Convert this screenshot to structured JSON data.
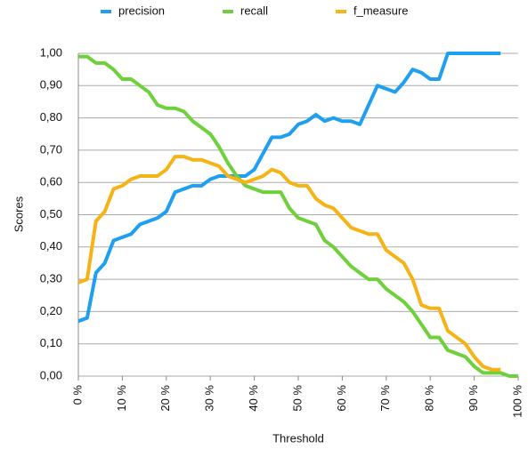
{
  "chart_data": {
    "type": "line",
    "x_label": "Threshold",
    "y_label": "Scores",
    "x": [
      0,
      2,
      4,
      6,
      8,
      10,
      12,
      14,
      16,
      18,
      20,
      22,
      24,
      26,
      28,
      30,
      32,
      34,
      36,
      38,
      40,
      42,
      44,
      46,
      48,
      50,
      52,
      54,
      56,
      58,
      60,
      62,
      64,
      66,
      68,
      70,
      72,
      74,
      76,
      78,
      80,
      82,
      84,
      86,
      88,
      90,
      92,
      94,
      96,
      98,
      100
    ],
    "series": [
      {
        "name": "precision",
        "color": "#1e9ff0",
        "values": [
          0.17,
          0.18,
          0.32,
          0.35,
          0.42,
          0.43,
          0.44,
          0.47,
          0.48,
          0.49,
          0.51,
          0.57,
          0.58,
          0.59,
          0.59,
          0.61,
          0.62,
          0.62,
          0.62,
          0.62,
          0.64,
          0.69,
          0.74,
          0.74,
          0.75,
          0.78,
          0.79,
          0.81,
          0.79,
          0.8,
          0.79,
          0.79,
          0.78,
          0.84,
          0.9,
          0.89,
          0.88,
          0.91,
          0.95,
          0.94,
          0.92,
          0.92,
          1.0,
          1.0,
          1.0,
          1.0,
          1.0,
          1.0,
          1.0,
          null,
          null
        ]
      },
      {
        "name": "recall",
        "color": "#6ed13b",
        "values": [
          0.99,
          0.99,
          0.97,
          0.97,
          0.95,
          0.92,
          0.92,
          0.9,
          0.88,
          0.84,
          0.83,
          0.83,
          0.82,
          0.79,
          0.77,
          0.75,
          0.71,
          0.66,
          0.62,
          0.59,
          0.58,
          0.57,
          0.57,
          0.57,
          0.52,
          0.49,
          0.48,
          0.47,
          0.42,
          0.4,
          0.37,
          0.34,
          0.32,
          0.3,
          0.3,
          0.27,
          0.25,
          0.23,
          0.2,
          0.16,
          0.12,
          0.12,
          0.08,
          0.07,
          0.06,
          0.03,
          0.01,
          0.01,
          0.01,
          0.0,
          0.0
        ]
      },
      {
        "name": "f_measure",
        "color": "#f5b316",
        "values": [
          0.29,
          0.3,
          0.48,
          0.51,
          0.58,
          0.59,
          0.61,
          0.62,
          0.62,
          0.62,
          0.64,
          0.68,
          0.68,
          0.67,
          0.67,
          0.66,
          0.65,
          0.62,
          0.61,
          0.6,
          0.61,
          0.62,
          0.64,
          0.63,
          0.6,
          0.59,
          0.59,
          0.55,
          0.53,
          0.52,
          0.49,
          0.46,
          0.45,
          0.44,
          0.44,
          0.39,
          0.37,
          0.35,
          0.3,
          0.22,
          0.21,
          0.21,
          0.14,
          0.12,
          0.1,
          0.06,
          0.03,
          0.02,
          0.02,
          null,
          null
        ]
      }
    ],
    "xlim": [
      0,
      100
    ],
    "xticks": [
      {
        "value": 0,
        "label": "0 %"
      },
      {
        "value": 10,
        "label": "10 %"
      },
      {
        "value": 20,
        "label": "20 %"
      },
      {
        "value": 30,
        "label": "30 %"
      },
      {
        "value": 40,
        "label": "40 %"
      },
      {
        "value": 50,
        "label": "50 %"
      },
      {
        "value": 60,
        "label": "60 %"
      },
      {
        "value": 70,
        "label": "70 %"
      },
      {
        "value": 80,
        "label": "80 %"
      },
      {
        "value": 90,
        "label": "90 %"
      },
      {
        "value": 100,
        "label": "100 %"
      }
    ],
    "ylim": [
      0,
      1
    ],
    "yticks": [
      {
        "value": 0,
        "label": "0,00"
      },
      {
        "value": 0.1,
        "label": "0,10"
      },
      {
        "value": 0.2,
        "label": "0,20"
      },
      {
        "value": 0.3,
        "label": "0,30"
      },
      {
        "value": 0.4,
        "label": "0,40"
      },
      {
        "value": 0.5,
        "label": "0,50"
      },
      {
        "value": 0.6,
        "label": "0,60"
      },
      {
        "value": 0.7,
        "label": "0,70"
      },
      {
        "value": 0.8,
        "label": "0,80"
      },
      {
        "value": 0.9,
        "label": "0,90"
      },
      {
        "value": 1,
        "label": "1,00"
      }
    ],
    "grid": true,
    "legend": "top"
  }
}
